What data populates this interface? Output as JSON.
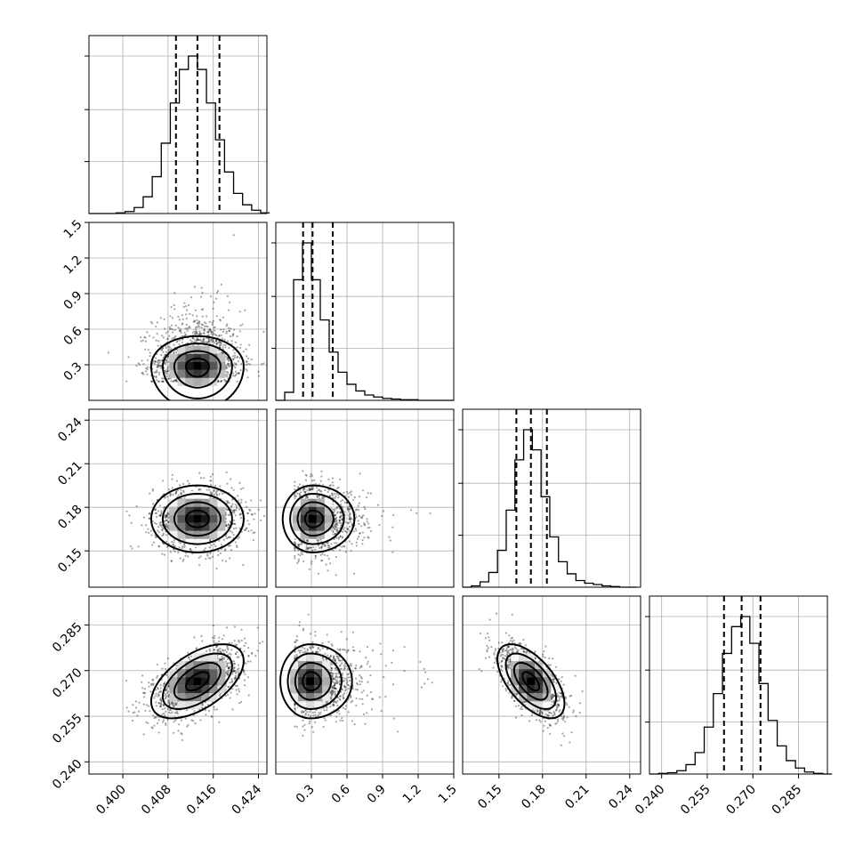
{
  "chart_data": {
    "type": "corner",
    "parameters": [
      {
        "key": "p0",
        "range": [
          0.394,
          0.4255
        ],
        "ticks": [
          "0.400",
          "0.408",
          "0.416",
          "0.424"
        ],
        "tick_values": [
          0.4,
          0.408,
          0.416,
          0.424
        ],
        "quantiles": [
          0.4094,
          0.4132,
          0.4171
        ],
        "mean": 0.4132,
        "sd": 0.0039
      },
      {
        "key": "p1",
        "range": [
          0.0,
          1.5
        ],
        "ticks": [
          "0.3",
          "0.6",
          "0.9",
          "1.2",
          "1.5"
        ],
        "tick_values": [
          0.3,
          0.6,
          0.9,
          1.2,
          1.5
        ],
        "quantiles": [
          0.23,
          0.31,
          0.48
        ],
        "mode": 0.29
      },
      {
        "key": "p2",
        "range": [
          0.125,
          0.2475
        ],
        "ticks": [
          "0.15",
          "0.18",
          "0.21",
          "0.24"
        ],
        "tick_values": [
          0.15,
          0.18,
          0.21,
          0.24
        ],
        "quantiles": [
          0.162,
          0.172,
          0.183
        ],
        "mean": 0.172,
        "sd": 0.011
      },
      {
        "key": "p3",
        "range": [
          0.236,
          0.2945
        ],
        "ticks": [
          "0.240",
          "0.255",
          "0.270",
          "0.285"
        ],
        "tick_values": [
          0.24,
          0.255,
          0.27,
          0.285
        ],
        "quantiles": [
          0.2605,
          0.2663,
          0.2725
        ],
        "mean": 0.2665,
        "sd": 0.0058
      }
    ],
    "histograms": [
      {
        "param": 0,
        "bin_edges": [
          0.394,
          0.3956,
          0.3972,
          0.3988,
          0.4004,
          0.402,
          0.4036,
          0.4052,
          0.4068,
          0.4084,
          0.41,
          0.4116,
          0.4132,
          0.4148,
          0.4164,
          0.418,
          0.4196,
          0.4212,
          0.4228,
          0.4244,
          0.426
        ],
        "counts": [
          0,
          0,
          0,
          1,
          3,
          9,
          25,
          55,
          105,
          165,
          215,
          235,
          215,
          165,
          110,
          62,
          30,
          13,
          5,
          1
        ]
      },
      {
        "param": 1,
        "bin_edges": [
          0.0,
          0.075,
          0.15,
          0.225,
          0.3,
          0.375,
          0.45,
          0.525,
          0.6,
          0.675,
          0.75,
          0.825,
          0.9,
          0.975,
          1.05,
          1.125,
          1.2,
          1.275,
          1.35,
          1.425,
          1.5
        ],
        "counts": [
          0,
          12,
          180,
          235,
          180,
          120,
          72,
          42,
          24,
          14,
          8,
          5,
          3,
          2,
          1,
          1,
          0,
          0,
          0,
          0
        ]
      },
      {
        "param": 2,
        "bin_edges": [
          0.125,
          0.131,
          0.137,
          0.143,
          0.149,
          0.155,
          0.161,
          0.167,
          0.173,
          0.179,
          0.185,
          0.191,
          0.197,
          0.203,
          0.209,
          0.215,
          0.221,
          0.227,
          0.233,
          0.239,
          0.245
        ],
        "counts": [
          0,
          2,
          8,
          22,
          55,
          115,
          190,
          235,
          205,
          135,
          75,
          38,
          20,
          10,
          6,
          4,
          2,
          1,
          0,
          0
        ]
      },
      {
        "param": 3,
        "bin_edges": [
          0.236,
          0.239,
          0.242,
          0.245,
          0.248,
          0.251,
          0.254,
          0.257,
          0.26,
          0.263,
          0.266,
          0.269,
          0.272,
          0.275,
          0.278,
          0.281,
          0.284,
          0.287,
          0.29,
          0.293,
          0.296
        ],
        "counts": [
          0,
          1,
          2,
          5,
          14,
          32,
          70,
          120,
          180,
          220,
          235,
          195,
          135,
          80,
          42,
          20,
          9,
          3,
          1,
          0
        ]
      }
    ],
    "pairs": [
      {
        "x": 0,
        "y": 1,
        "center": [
          0.4132,
          0.29
        ],
        "orient": 0
      },
      {
        "x": 0,
        "y": 2,
        "center": [
          0.4132,
          0.172
        ],
        "orient": 0
      },
      {
        "x": 1,
        "y": 2,
        "center": [
          0.31,
          0.172
        ],
        "orient": 0
      },
      {
        "x": 0,
        "y": 3,
        "center": [
          0.4132,
          0.2665
        ],
        "orient": 0.55
      },
      {
        "x": 1,
        "y": 3,
        "center": [
          0.29,
          0.2665
        ],
        "orient": 0
      },
      {
        "x": 2,
        "y": 3,
        "center": [
          0.172,
          0.2665
        ],
        "orient": -0.6
      }
    ],
    "contour_levels": [
      "0.5-sigma",
      "1-sigma",
      "1.5-sigma",
      "2-sigma"
    ],
    "grid": true,
    "colors": {
      "lines": "#000000",
      "grid": "#b0b0b0",
      "points": "#000000"
    }
  }
}
